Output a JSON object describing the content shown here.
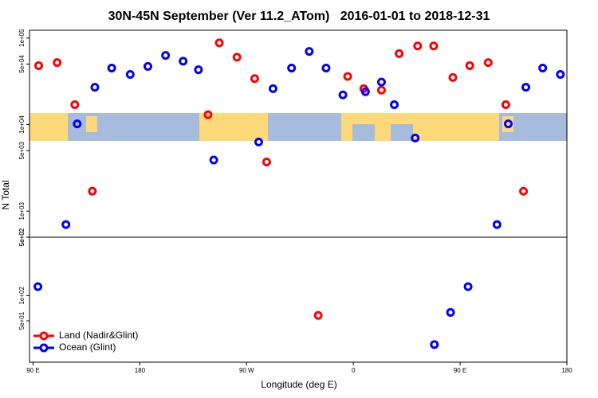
{
  "chart_data": {
    "type": "scatter",
    "title": "30N-45N September (Ver 11.2_ATom)   2016-01-01 to 2018-12-31",
    "xlabel": "Longitude (deg E)",
    "ylabel": "N Total",
    "xlim": [
      87,
      540
    ],
    "xticks": [
      {
        "value": 90,
        "label": "90 E"
      },
      {
        "value": 180,
        "label": "180"
      },
      {
        "value": 270,
        "label": "90 W"
      },
      {
        "value": 360,
        "label": "0"
      },
      {
        "value": 450,
        "label": "90 E"
      },
      {
        "value": 540,
        "label": "180"
      }
    ],
    "log_y": true,
    "legend": "bottom-left",
    "panels": [
      {
        "ylim": [
          500,
          123000
        ],
        "yticks": [
          {
            "value": 100000,
            "label": "1e+05"
          },
          {
            "value": 50000,
            "label": "5e+04"
          },
          {
            "value": 10000,
            "label": "1e+04"
          },
          {
            "value": 5000,
            "label": "5e+03"
          },
          {
            "value": 1000,
            "label": "1e+03"
          },
          {
            "value": 500,
            "label": "5e+02"
          }
        ]
      },
      {
        "ylim": [
          16,
          500
        ],
        "yticks": [
          {
            "value": 500,
            "label": "5e+02"
          },
          {
            "value": 100,
            "label": "1e+02"
          },
          {
            "value": 50,
            "label": "5e+01"
          }
        ]
      }
    ],
    "series": [
      {
        "name": "Land (Nadir&Glint)",
        "color": "#ff0000",
        "x": [
          94.7,
          110.3,
          125.2,
          140,
          237.5,
          247,
          261.9,
          276.8,
          286.9,
          330.4,
          355.2,
          368.8,
          383.7,
          398.6,
          414.2,
          427.7,
          443.9,
          458.1,
          473.7,
          488.5,
          503.4
        ],
        "values": [
          48000,
          52000,
          17000,
          1700,
          13000,
          88000,
          60000,
          34000,
          3700,
          58,
          36000,
          26000,
          25000,
          66000,
          81000,
          81000,
          35000,
          48000,
          52000,
          17000,
          1700
        ]
      },
      {
        "name": "Ocean (Glint)",
        "color": "#0000ff",
        "x": [
          94.1,
          117.7,
          127.2,
          142.1,
          156.3,
          171.9,
          186.8,
          201.7,
          216.5,
          229.4,
          242.3,
          280.2,
          292.3,
          307.9,
          322.8,
          337,
          351.2,
          370.2,
          383.7,
          394.5,
          412.1,
          428.3,
          441.9,
          456.7,
          481.1,
          490.6,
          505.4,
          519.6,
          534.5
        ],
        "values": [
          128,
          700,
          10200,
          27000,
          45000,
          38000,
          47000,
          63000,
          54000,
          43000,
          3900,
          6300,
          26000,
          45000,
          70000,
          45000,
          22000,
          24000,
          31000,
          17000,
          7000,
          26,
          63,
          128,
          700,
          10200,
          27000,
          45000,
          38000
        ]
      }
    ]
  }
}
